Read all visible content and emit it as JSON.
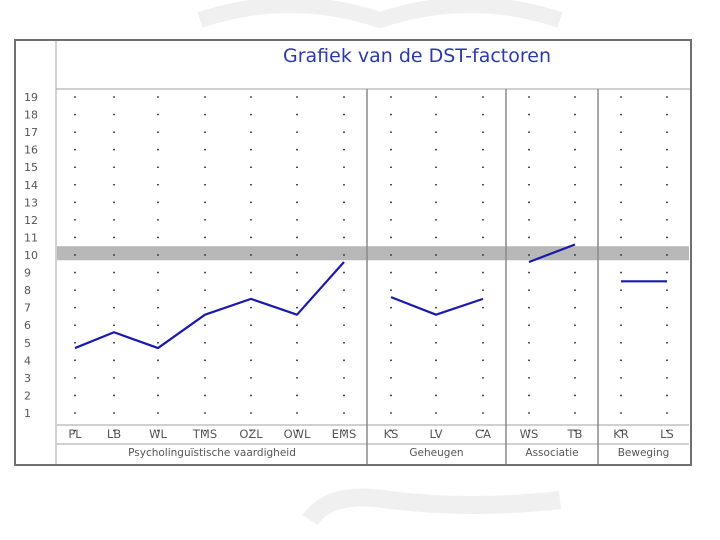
{
  "chart_data": {
    "type": "line",
    "title": "Grafiek van de DST-factoren",
    "y_ticks": [
      1,
      2,
      3,
      4,
      5,
      6,
      7,
      8,
      9,
      10,
      11,
      12,
      13,
      14,
      15,
      16,
      17,
      18,
      19
    ],
    "ylim": [
      1,
      19
    ],
    "grid": "dotted",
    "reference_band": {
      "from": 9.7,
      "to": 10.5
    },
    "groups": [
      {
        "name": "Psycholinguïstische vaardigheid",
        "categories": [
          "PL",
          "LB",
          "WL",
          "TMS",
          "OZL",
          "OWL",
          "EMS"
        ],
        "values": [
          4.7,
          5.6,
          4.7,
          6.6,
          7.5,
          6.6,
          9.6
        ]
      },
      {
        "name": "Geheugen",
        "categories": [
          "KS",
          "LV",
          "CA"
        ],
        "values": [
          7.6,
          6.6,
          7.5
        ]
      },
      {
        "name": "Associatie",
        "categories": [
          "WS",
          "TB"
        ],
        "values": [
          9.6,
          10.6
        ]
      },
      {
        "name": "Beweging",
        "categories": [
          "KR",
          "LS"
        ],
        "values": [
          8.5,
          8.5
        ]
      }
    ]
  },
  "colors": {
    "line": "#1a1aa6",
    "title": "#2c3aa6",
    "band": "#b8b8b8",
    "frame": "#7d7d7d",
    "text": "#555555"
  }
}
